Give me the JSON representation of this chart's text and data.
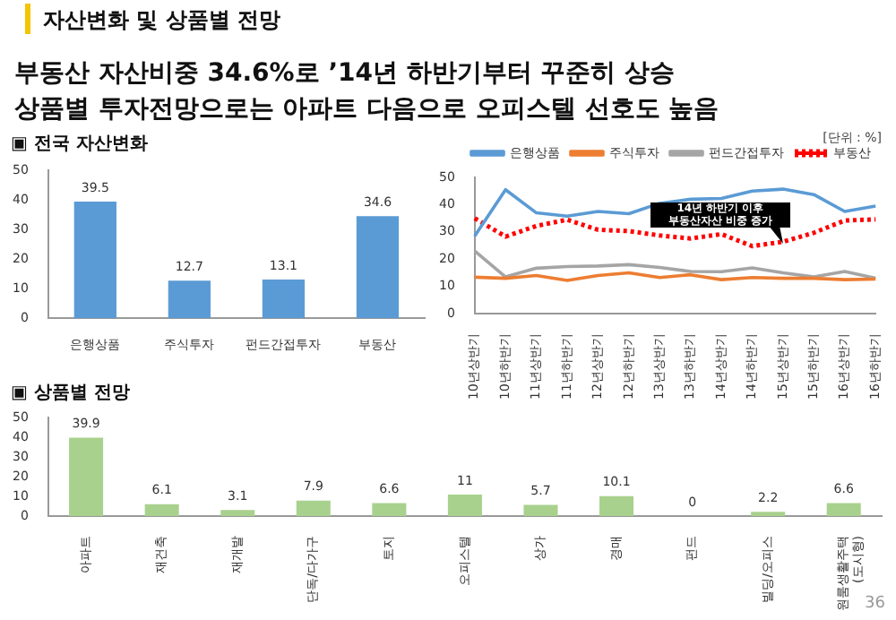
{
  "chart_data": [
    {
      "type": "bar",
      "title": "▣ 전국 자산변화",
      "annotations": [
        "자산변화 및 상품별 전망",
        "부동산 자산비중 34.6%로 ’14년 하반기부터 꾸준히 상승",
        "상품별 투자전망으로는 아파트 다음으로 오피스텔 선호도 높음"
      ],
      "categories": [
        "은행상품",
        "주식투자",
        "펀드간접투자",
        "부동산"
      ],
      "values": [
        39.5,
        12.7,
        13.1,
        34.6
      ],
      "color": "#5b9bd5",
      "ylim": [
        0,
        50
      ],
      "yticks": [
        0,
        10,
        20,
        30,
        40,
        50
      ],
      "grid": false,
      "legend": false,
      "data_labels": true
    },
    {
      "type": "line",
      "annotations": [
        {
          "text": "14년 하반기 이후 부동산자산 비중 증가",
          "x": "15년상반기",
          "y": 26
        },
        "[단위 : %]"
      ],
      "categories": [
        "10년상반기",
        "10년하반기",
        "11년상반기",
        "11년하반기",
        "12년상반기",
        "12년하반기",
        "13년상반기",
        "13년하반기",
        "14년상반기",
        "14년하반기",
        "15년상반기",
        "15년하반기",
        "16년상반기",
        "16년하반기"
      ],
      "series": [
        {
          "name": "은행상품",
          "color": "#5b9bd5",
          "values": [
            28.5,
            45.5,
            37,
            35.8,
            37.5,
            36.7,
            40.5,
            42,
            42.3,
            45,
            45.7,
            43.7,
            37.5,
            39.5
          ]
        },
        {
          "name": "주식투자",
          "color": "#ed7d31",
          "values": [
            13.4,
            13,
            14,
            12.2,
            14,
            15,
            13.3,
            14.3,
            12.5,
            13.3,
            13,
            13,
            12.5,
            12.7
          ]
        },
        {
          "name": "펀드간접투자",
          "color": "#a5a5a5",
          "values": [
            23,
            13.5,
            16.7,
            17.3,
            17.5,
            18,
            17,
            15.5,
            15.4,
            16.8,
            15,
            13.5,
            15.5,
            13
          ]
        },
        {
          "name": "부동산",
          "color": "#ff0000",
          "line_style": "dotted",
          "values": [
            35,
            28.3,
            32.2,
            34.5,
            30.8,
            30.3,
            28.7,
            27.6,
            29.2,
            24.8,
            26.4,
            29.7,
            34.2,
            34.6
          ]
        }
      ],
      "ylim": [
        0,
        50
      ],
      "yticks": [
        0,
        10,
        20,
        30,
        40,
        50
      ],
      "grid": false,
      "legend": "top",
      "marker": "none",
      "line_style": "solid"
    },
    {
      "type": "bar",
      "title": "▣ 상품별 전망",
      "annotations": [
        "36"
      ],
      "categories": [
        "아파트",
        "재건축",
        "재개발",
        "단독/다가구",
        "토지",
        "오피스텔",
        "상가",
        "경매",
        "펀드",
        "빌딩/오피스",
        "원룸생활주택 (도시형)"
      ],
      "values": [
        39.9,
        6.1,
        3.1,
        7.9,
        6.6,
        11,
        5.7,
        10.1,
        0,
        2.2,
        6.6
      ],
      "color": "#a9d18e",
      "ylim": [
        0,
        50
      ],
      "yticks": [
        0,
        10,
        20,
        30,
        40,
        50
      ],
      "grid": false,
      "legend": false,
      "data_labels": true
    }
  ]
}
